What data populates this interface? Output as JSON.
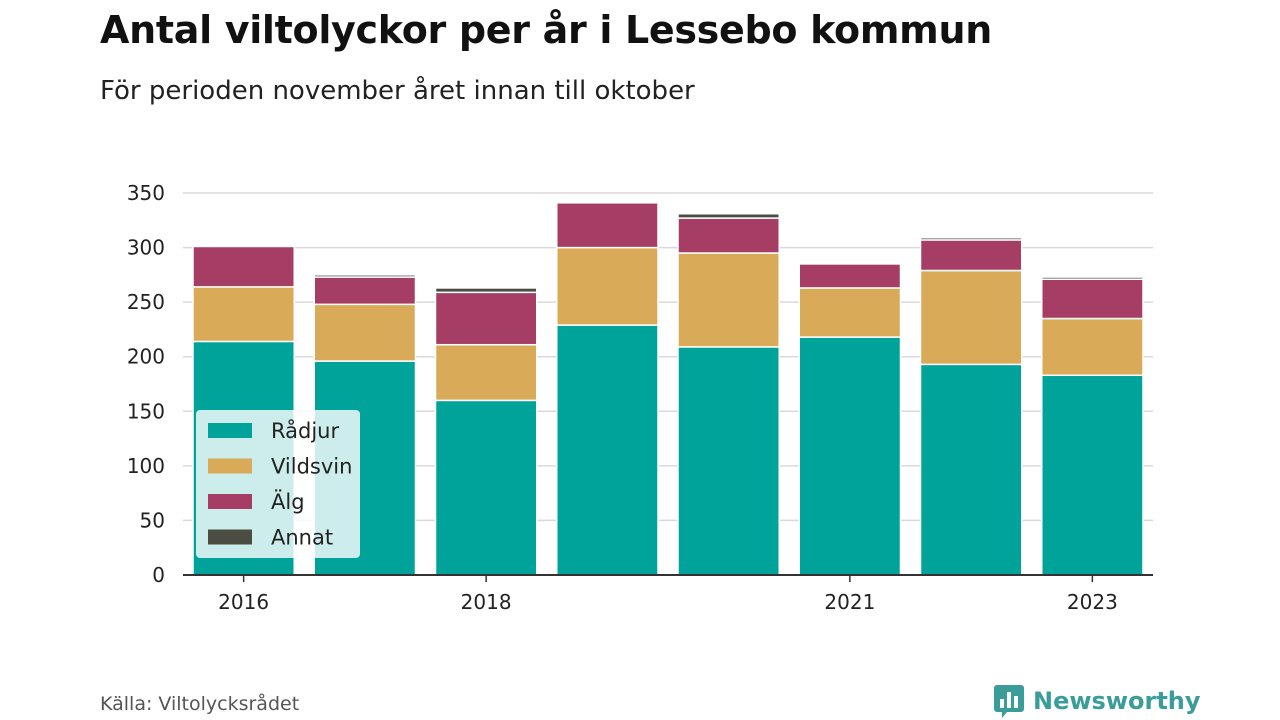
{
  "header": {
    "title": "Antal viltolyckor per år i Lessebo kommun",
    "subtitle": "För perioden november året innan till oktober"
  },
  "footer": {
    "source": "Källa: Viltolycksrådet",
    "brand": "Newsworthy",
    "brand_icon": "bar-chart-logo-icon",
    "brand_color": "#3a9d9a"
  },
  "chart_data": {
    "type": "bar",
    "stacked": true,
    "categories": [
      "2016",
      "2017",
      "2018",
      "2019",
      "2020",
      "2021",
      "2022",
      "2023"
    ],
    "x_tick_labels": [
      "2016",
      "",
      "2018",
      "",
      "",
      "2021",
      "",
      "2023"
    ],
    "series": [
      {
        "name": "Rådjur",
        "color": "#00a39a",
        "values": [
          214,
          196,
          160,
          229,
          209,
          218,
          193,
          183
        ]
      },
      {
        "name": "Vildsvin",
        "color": "#d9ab58",
        "values": [
          50,
          52,
          51,
          71,
          86,
          45,
          86,
          52
        ]
      },
      {
        "name": "Älg",
        "color": "#a63d65",
        "values": [
          37,
          25,
          48,
          41,
          32,
          22,
          28,
          36
        ]
      },
      {
        "name": "Annat",
        "color": "#4b4c42",
        "values": [
          0,
          2,
          4,
          0,
          4,
          0,
          2,
          2
        ]
      }
    ],
    "ylim": [
      0,
      350
    ],
    "y_ticks": [
      0,
      50,
      100,
      150,
      200,
      250,
      300,
      350
    ],
    "grid": true,
    "legend_position": "bottom-left inside plot"
  }
}
